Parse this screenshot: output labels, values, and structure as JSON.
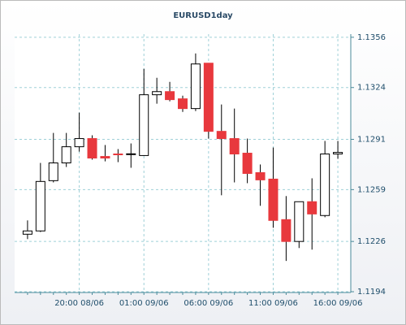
{
  "chart_data": {
    "type": "candlestick",
    "title": "EURUSD1day",
    "categories": [
      null,
      null,
      null,
      null,
      "20:00 08/06",
      null,
      null,
      null,
      null,
      "01:00 09/06",
      null,
      null,
      null,
      null,
      "06:00 09/06",
      null,
      null,
      null,
      null,
      "11:00 09/06",
      null,
      null,
      null,
      null,
      "16:00 09/06"
    ],
    "open": [
      1.12306,
      1.12327,
      1.12647,
      1.1276,
      1.12863,
      1.12915,
      1.12801,
      1.12817,
      1.12814,
      1.12807,
      1.13194,
      1.13214,
      1.13168,
      1.13106,
      1.13395,
      1.12961,
      1.12915,
      1.12822,
      1.12698,
      1.12657,
      1.12399,
      1.1226,
      1.12513,
      1.12425,
      1.12817
    ],
    "high": [
      1.12394,
      1.1276,
      1.12951,
      1.12951,
      1.1308,
      1.12936,
      1.12874,
      1.12848,
      1.12884,
      1.13359,
      1.13302,
      1.13276,
      1.13188,
      1.13457,
      1.13395,
      1.13132,
      1.13106,
      1.12915,
      1.1275,
      1.12858,
      1.12549,
      1.12513,
      1.12662,
      1.129,
      1.129
    ],
    "low": [
      1.12275,
      1.1232,
      1.12636,
      1.12734,
      1.12832,
      1.12781,
      1.1277,
      1.12765,
      1.12729,
      1.12805,
      1.13137,
      1.13152,
      1.13085,
      1.1309,
      1.12915,
      1.12554,
      1.12636,
      1.12631,
      1.12487,
      1.12347,
      1.12136,
      1.12218,
      1.12208,
      1.12414,
      1.12786
    ],
    "close": [
      1.12327,
      1.12642,
      1.1276,
      1.12863,
      1.12915,
      1.12791,
      1.12791,
      1.12814,
      1.12818,
      1.13194,
      1.13214,
      1.13163,
      1.13106,
      1.1339,
      1.12961,
      1.12915,
      1.12817,
      1.12693,
      1.12652,
      1.12394,
      1.1226,
      1.12513,
      1.12435,
      1.12817,
      1.12827
    ],
    "up_color": "#ffffff",
    "down_color": "#e8383d",
    "ylim": [
      1.11935,
      1.1358
    ],
    "yticks": [
      1.1194,
      1.1226,
      1.1259,
      1.1291,
      1.1324,
      1.1356
    ],
    "grid": true
  }
}
